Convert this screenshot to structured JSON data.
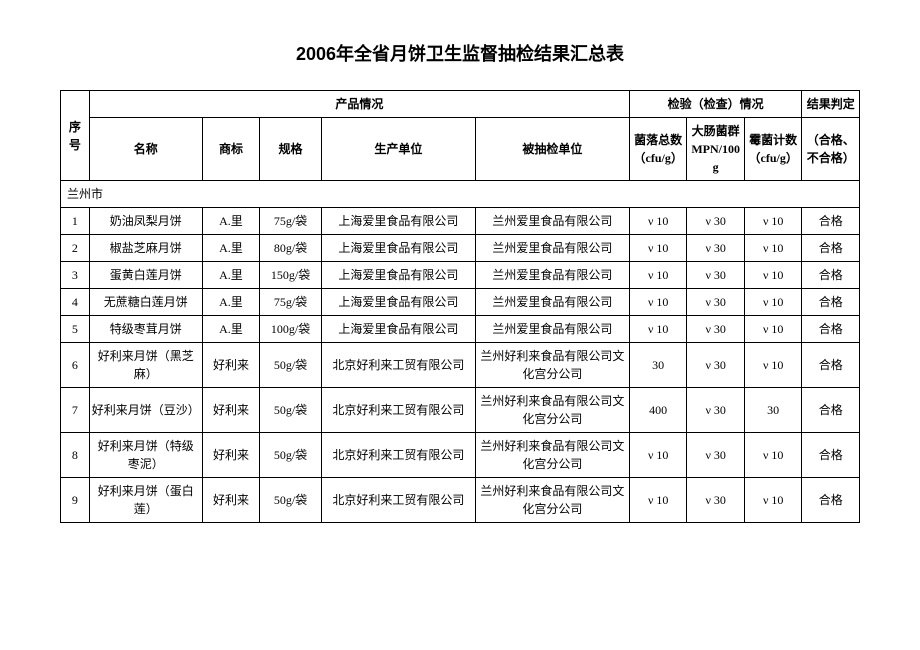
{
  "title": "2006年全省月饼卫生监督抽检结果汇总表",
  "headers": {
    "product_group": "产品情况",
    "test_group": "检验（检查）情况",
    "result_group": "结果判定",
    "idx": "序号",
    "name": "名称",
    "brand": "商标",
    "spec": "规格",
    "producer": "生产单位",
    "sampled": "被抽检单位",
    "bacteria": "菌落总数（cfu/g）",
    "coliform": "大肠菌群MPN/100g",
    "mold": "霉菌计数（cfu/g）",
    "result": "（合格、不合格）"
  },
  "section": "兰州市",
  "rows": [
    {
      "idx": "1",
      "name": "奶油凤梨月饼",
      "brand": "A.里",
      "spec": "75g/袋",
      "producer": "上海爱里食品有限公司",
      "sampled": "兰州爱里食品有限公司",
      "bac": "ν 10",
      "coli": "ν 30",
      "mold": "ν 10",
      "res": "合格"
    },
    {
      "idx": "2",
      "name": "椒盐芝麻月饼",
      "brand": "A.里",
      "spec": "80g/袋",
      "producer": "上海爱里食品有限公司",
      "sampled": "兰州爱里食品有限公司",
      "bac": "ν 10",
      "coli": "ν 30",
      "mold": "ν 10",
      "res": "合格"
    },
    {
      "idx": "3",
      "name": "蛋黄白莲月饼",
      "brand": "A.里",
      "spec": "150g/袋",
      "producer": "上海爱里食品有限公司",
      "sampled": "兰州爱里食品有限公司",
      "bac": "ν 10",
      "coli": "ν 30",
      "mold": "ν 10",
      "res": "合格"
    },
    {
      "idx": "4",
      "name": "无蔗糖白莲月饼",
      "brand": "A.里",
      "spec": "75g/袋",
      "producer": "上海爱里食品有限公司",
      "sampled": "兰州爱里食品有限公司",
      "bac": "ν 10",
      "coli": "ν 30",
      "mold": "ν 10",
      "res": "合格"
    },
    {
      "idx": "5",
      "name": "特级枣茸月饼",
      "brand": "A.里",
      "spec": "100g/袋",
      "producer": "上海爱里食品有限公司",
      "sampled": "兰州爱里食品有限公司",
      "bac": "ν 10",
      "coli": "ν 30",
      "mold": "ν 10",
      "res": "合格"
    },
    {
      "idx": "6",
      "name": "好利来月饼（黑芝麻）",
      "brand": "好利来",
      "spec": "50g/袋",
      "producer": "北京好利来工贸有限公司",
      "sampled": "兰州好利来食品有限公司文化宫分公司",
      "bac": "30",
      "coli": "ν 30",
      "mold": "ν 10",
      "res": "合格"
    },
    {
      "idx": "7",
      "name": "好利来月饼（豆沙）",
      "brand": "好利来",
      "spec": "50g/袋",
      "producer": "北京好利来工贸有限公司",
      "sampled": "兰州好利来食品有限公司文化宫分公司",
      "bac": "400",
      "coli": "ν 30",
      "mold": "30",
      "res": "合格"
    },
    {
      "idx": "8",
      "name": "好利来月饼（特级枣泥）",
      "brand": "好利来",
      "spec": "50g/袋",
      "producer": "北京好利来工贸有限公司",
      "sampled": "兰州好利来食品有限公司文化宫分公司",
      "bac": "ν 10",
      "coli": "ν 30",
      "mold": "ν 10",
      "res": "合格"
    },
    {
      "idx": "9",
      "name": "好利来月饼（蛋白莲）",
      "brand": "好利来",
      "spec": "50g/袋",
      "producer": "北京好利来工贸有限公司",
      "sampled": "兰州好利来食品有限公司文化宫分公司",
      "bac": "ν 10",
      "coli": "ν 30",
      "mold": "ν 10",
      "res": "合格"
    }
  ]
}
